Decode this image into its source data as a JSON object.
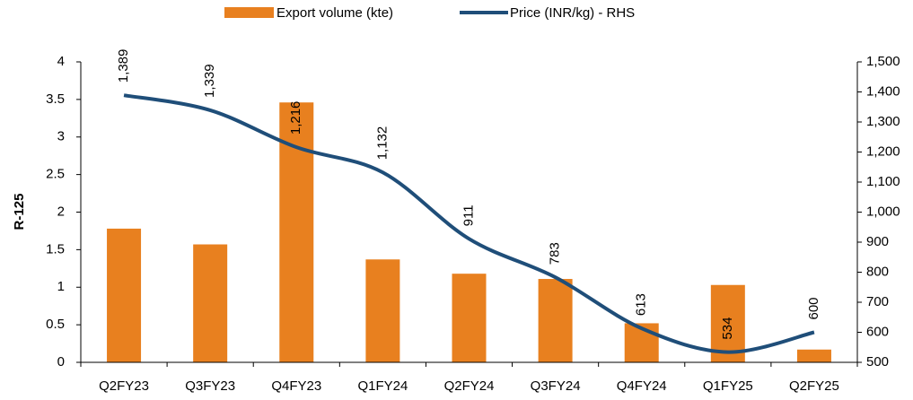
{
  "chart_data": {
    "type": "bar",
    "categories": [
      "Q2FY23",
      "Q3FY23",
      "Q4FY23",
      "Q1FY24",
      "Q2FY24",
      "Q3FY24",
      "Q4FY24",
      "Q1FY25",
      "Q2FY25"
    ],
    "series": [
      {
        "name": "Export volume (kte)",
        "type": "bar",
        "color": "#e8801f",
        "values": [
          1.78,
          1.57,
          3.46,
          1.37,
          1.18,
          1.11,
          0.52,
          1.03,
          0.17
        ]
      },
      {
        "name": "Price (INR/kg)  - RHS",
        "type": "line",
        "axis": "y2",
        "color": "#1f4e79",
        "values": [
          1389,
          1339,
          1216,
          1132,
          911,
          783,
          613,
          534,
          600
        ],
        "value_labels": [
          "1,389",
          "1,339",
          "1,216",
          "1,132",
          "911",
          "783",
          "613",
          "534",
          "600"
        ]
      }
    ],
    "ylabel": "R-125",
    "ylim": [
      0,
      4
    ],
    "yticks": [
      0,
      0.5,
      1,
      1.5,
      2,
      2.5,
      3,
      3.5,
      4
    ],
    "y2lim": [
      500,
      1500
    ],
    "y2ticks": [
      500,
      600,
      700,
      800,
      900,
      {
        "value": 1000,
        "label": "1,000"
      },
      {
        "value": 1100,
        "label": "1,100"
      },
      {
        "value": 1200,
        "label": "1,200"
      },
      {
        "value": 1300,
        "label": "1,300"
      },
      {
        "value": 1400,
        "label": "1,400"
      },
      {
        "value": 1500,
        "label": "1,500"
      }
    ],
    "legend": "top",
    "grid": false
  }
}
